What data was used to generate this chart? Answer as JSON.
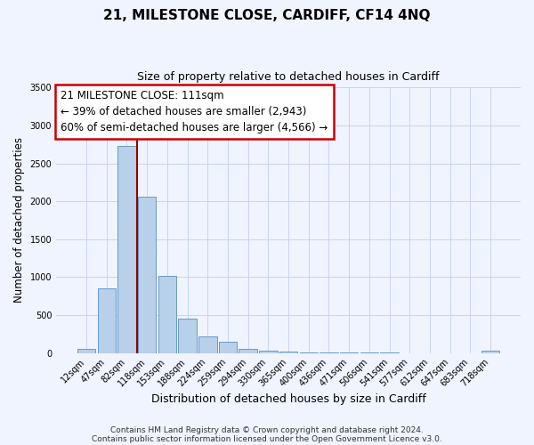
{
  "title": "21, MILESTONE CLOSE, CARDIFF, CF14 4NQ",
  "subtitle": "Size of property relative to detached houses in Cardiff",
  "xlabel": "Distribution of detached houses by size in Cardiff",
  "ylabel": "Number of detached properties",
  "bar_labels": [
    "12sqm",
    "47sqm",
    "82sqm",
    "118sqm",
    "153sqm",
    "188sqm",
    "224sqm",
    "259sqm",
    "294sqm",
    "330sqm",
    "365sqm",
    "400sqm",
    "436sqm",
    "471sqm",
    "506sqm",
    "541sqm",
    "577sqm",
    "612sqm",
    "647sqm",
    "683sqm",
    "718sqm"
  ],
  "bar_values": [
    55,
    850,
    2730,
    2060,
    1020,
    455,
    215,
    150,
    55,
    30,
    20,
    10,
    5,
    5,
    5,
    5,
    0,
    0,
    0,
    0,
    30
  ],
  "bar_color": "#b8d0ea",
  "bar_edgecolor": "#6699cc",
  "vline_color": "#990000",
  "annotation_title": "21 MILESTONE CLOSE: 111sqm",
  "annotation_line1": "← 39% of detached houses are smaller (2,943)",
  "annotation_line2": "60% of semi-detached houses are larger (4,566) →",
  "annotation_box_edgecolor": "#cc0000",
  "ylim": [
    0,
    3500
  ],
  "yticks": [
    0,
    500,
    1000,
    1500,
    2000,
    2500,
    3000,
    3500
  ],
  "footnote1": "Contains HM Land Registry data © Crown copyright and database right 2024.",
  "footnote2": "Contains public sector information licensed under the Open Government Licence v3.0.",
  "bg_color": "#f0f4ff",
  "grid_color": "#c8d4ec"
}
